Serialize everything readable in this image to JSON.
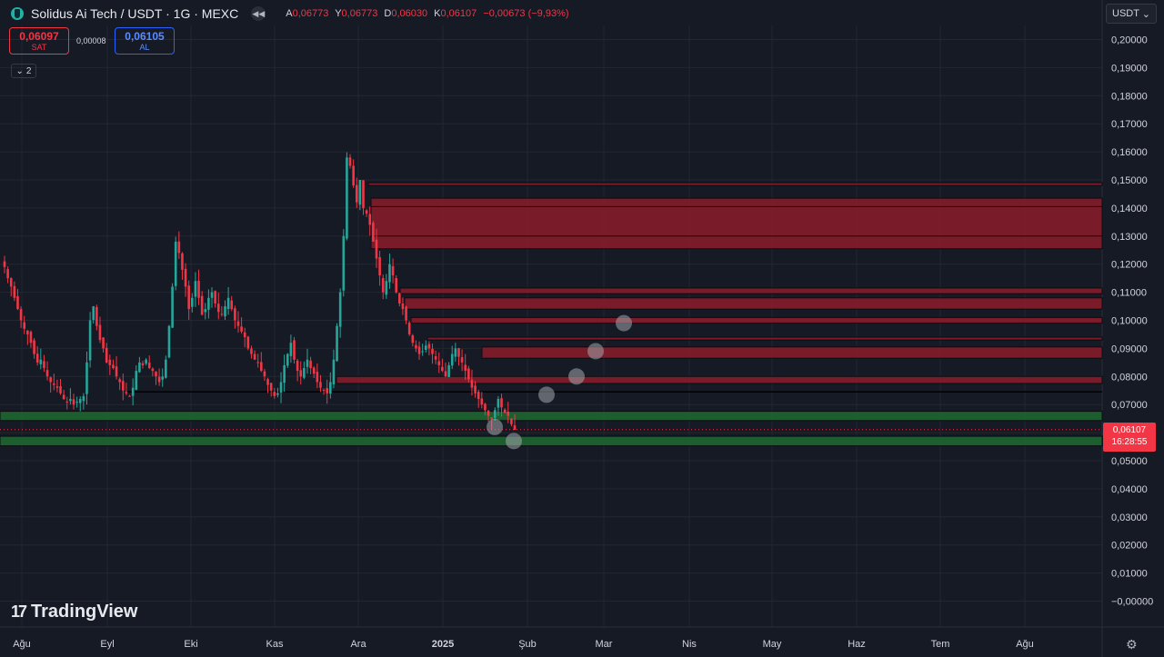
{
  "header": {
    "title": "Solidus Ai Tech / USDT · 1G · MEXC",
    "ohlc": [
      {
        "k": "A",
        "v": "0,06773"
      },
      {
        "k": "Y",
        "v": "0,06773"
      },
      {
        "k": "D",
        "v": "0,06030"
      },
      {
        "k": "K",
        "v": "0,06107"
      },
      {
        "k": "",
        "v": "−0,00673 (−9,93%)"
      }
    ]
  },
  "trade": {
    "sell_price": "0,06097",
    "sell_label": "SAT",
    "spread": "0,00008",
    "buy_price": "0,06105",
    "buy_label": "AL"
  },
  "indicators_toggle": "2",
  "currency": "USDT",
  "last_price": {
    "value": "0,06107",
    "countdown": "16:28:55"
  },
  "brand": "TradingView",
  "colors": {
    "background": "#161a25",
    "up": "#26a69a",
    "down": "#f23645",
    "supply_zone": "#9b1c2a",
    "demand_zone": "#1e6b31",
    "grid": "#232733"
  },
  "chart_data": {
    "type": "candlestick",
    "symbol": "Solidus Ai Tech / USDT",
    "interval": "1G",
    "exchange": "MEXC",
    "x_tick_labels": [
      "Ağu",
      "Eyl",
      "Eki",
      "Kas",
      "Ara",
      "2025",
      "Şub",
      "Mar",
      "Nis",
      "May",
      "Haz",
      "Tem",
      "Ağu"
    ],
    "y_tick_labels": [
      "0,20000",
      "0,19000",
      "0,18000",
      "0,17000",
      "0,16000",
      "0,15000",
      "0,14000",
      "0,13000",
      "0,12000",
      "0,11000",
      "0,10000",
      "0,09000",
      "0,08000",
      "0,07000",
      "0,06000",
      "0,05000",
      "0,04000",
      "0,03000",
      "0,02000",
      "0,01000",
      "−0,00000"
    ],
    "ylim": [
      0.0,
      0.2
    ],
    "price_path": [
      0.119,
      0.115,
      0.112,
      0.108,
      0.104,
      0.1,
      0.097,
      0.095,
      0.092,
      0.088,
      0.085,
      0.086,
      0.083,
      0.08,
      0.078,
      0.077,
      0.076,
      0.074,
      0.072,
      0.071,
      0.072,
      0.07,
      0.071,
      0.072,
      0.073,
      0.085,
      0.1,
      0.105,
      0.098,
      0.093,
      0.09,
      0.085,
      0.084,
      0.083,
      0.08,
      0.078,
      0.075,
      0.074,
      0.073,
      0.076,
      0.082,
      0.085,
      0.084,
      0.086,
      0.083,
      0.082,
      0.08,
      0.078,
      0.08,
      0.086,
      0.098,
      0.112,
      0.128,
      0.124,
      0.118,
      0.112,
      0.104,
      0.108,
      0.114,
      0.108,
      0.102,
      0.104,
      0.108,
      0.11,
      0.106,
      0.103,
      0.102,
      0.105,
      0.108,
      0.104,
      0.1,
      0.098,
      0.096,
      0.094,
      0.09,
      0.088,
      0.086,
      0.085,
      0.082,
      0.08,
      0.077,
      0.075,
      0.073,
      0.074,
      0.078,
      0.084,
      0.088,
      0.092,
      0.086,
      0.082,
      0.08,
      0.083,
      0.086,
      0.083,
      0.081,
      0.078,
      0.076,
      0.075,
      0.074,
      0.078,
      0.086,
      0.098,
      0.11,
      0.13,
      0.158,
      0.155,
      0.148,
      0.142,
      0.15,
      0.14,
      0.138,
      0.134,
      0.128,
      0.122,
      0.116,
      0.11,
      0.114,
      0.12,
      0.116,
      0.11,
      0.106,
      0.104,
      0.1,
      0.095,
      0.092,
      0.09,
      0.088,
      0.089,
      0.091,
      0.09,
      0.088,
      0.086,
      0.084,
      0.082,
      0.08,
      0.084,
      0.088,
      0.09,
      0.087,
      0.085,
      0.082,
      0.079,
      0.076,
      0.074,
      0.072,
      0.07,
      0.068,
      0.066,
      0.065,
      0.068,
      0.072,
      0.069,
      0.067,
      0.066,
      0.063,
      0.061
    ],
    "supply_zones": [
      [
        0.148,
        0.149
      ],
      [
        0.1255,
        0.1435
      ],
      [
        0.1095,
        0.1115
      ],
      [
        0.104,
        0.108
      ],
      [
        0.099,
        0.101
      ],
      [
        0.093,
        0.094
      ],
      [
        0.0865,
        0.0905
      ],
      [
        0.0775,
        0.08
      ]
    ],
    "demand_zones": [
      [
        0.0643,
        0.0676
      ],
      [
        0.0553,
        0.0587
      ]
    ],
    "support_lines": [
      0.0745
    ],
    "projection_points": [
      [
        0.062
      ],
      [
        0.057
      ],
      [
        0.0735
      ],
      [
        0.08
      ],
      [
        0.089
      ],
      [
        0.099
      ]
    ],
    "last": 0.06107,
    "grid": true
  }
}
